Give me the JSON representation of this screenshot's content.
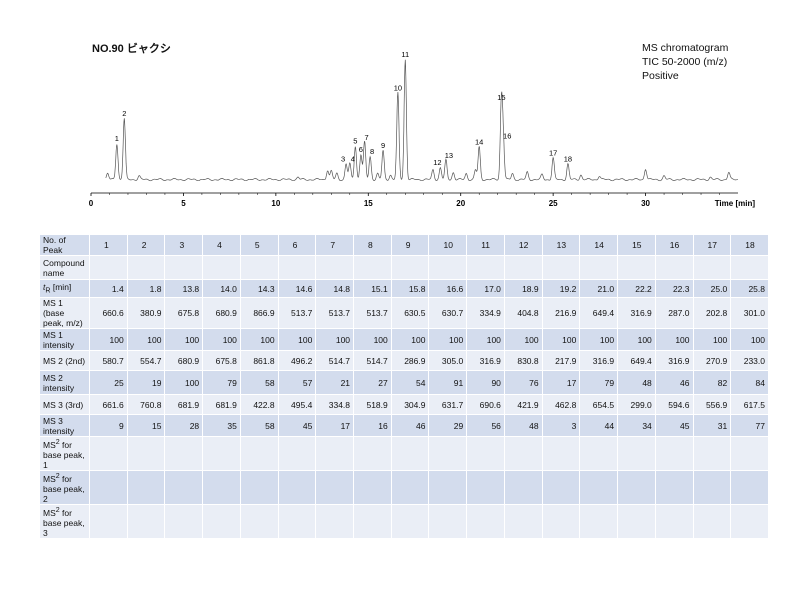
{
  "sample_title": "NO.90 ビャクシ",
  "info_lines": [
    "MS chromatogram",
    "TIC 50-2000 (m/z)",
    "Positive"
  ],
  "chart_data": {
    "type": "line",
    "title": "",
    "xlabel": "Time [min]",
    "xlim": [
      0,
      35
    ],
    "x_ticks": [
      "0",
      "5",
      "10",
      "15",
      "20",
      "25",
      "30"
    ],
    "peaks": [
      {
        "label": "1",
        "t": 1.4,
        "h": 0.3
      },
      {
        "label": "2",
        "t": 1.8,
        "h": 0.51
      },
      {
        "label": "3",
        "t": 13.8,
        "h": 0.13
      },
      {
        "label": "4",
        "t": 14.0,
        "h": 0.13
      },
      {
        "label": "5",
        "t": 14.3,
        "h": 0.28
      },
      {
        "label": "6",
        "t": 14.6,
        "h": 0.21
      },
      {
        "label": "7",
        "t": 14.8,
        "h": 0.31
      },
      {
        "label": "8",
        "t": 15.1,
        "h": 0.19
      },
      {
        "label": "9",
        "t": 15.8,
        "h": 0.24
      },
      {
        "label": "10",
        "t": 16.6,
        "h": 0.72
      },
      {
        "label": "11",
        "t": 17.0,
        "h": 1.0
      },
      {
        "label": "12",
        "t": 18.9,
        "h": 0.1
      },
      {
        "label": "13",
        "t": 19.2,
        "h": 0.16
      },
      {
        "label": "14",
        "t": 21.0,
        "h": 0.27
      },
      {
        "label": "15",
        "t": 22.2,
        "h": 0.64
      },
      {
        "label": "16",
        "t": 22.3,
        "h": 0.32
      },
      {
        "label": "17",
        "t": 25.0,
        "h": 0.18
      },
      {
        "label": "18",
        "t": 25.8,
        "h": 0.13
      }
    ]
  },
  "table": {
    "rows": [
      {
        "label": "No. of Peak",
        "values": [
          "1",
          "2",
          "3",
          "4",
          "5",
          "6",
          "7",
          "8",
          "9",
          "10",
          "11",
          "12",
          "13",
          "14",
          "15",
          "16",
          "17",
          "18"
        ]
      },
      {
        "label": "Compound name",
        "values": [
          "",
          "",
          "",
          "",
          "",
          "",
          "",
          "",
          "",
          "",
          "",
          "",
          "",
          "",
          "",
          "",
          "",
          ""
        ]
      },
      {
        "label_html": "<i>t</i><sub>R</sub> [min]",
        "values": [
          "1.4",
          "1.8",
          "13.8",
          "14.0",
          "14.3",
          "14.6",
          "14.8",
          "15.1",
          "15.8",
          "16.6",
          "17.0",
          "18.9",
          "19.2",
          "21.0",
          "22.2",
          "22.3",
          "25.0",
          "25.8"
        ]
      },
      {
        "label": "MS 1 (base peak, m/z)",
        "values": [
          "660.6",
          "380.9",
          "675.8",
          "680.9",
          "866.9",
          "513.7",
          "513.7",
          "513.7",
          "630.5",
          "630.7",
          "334.9",
          "404.8",
          "216.9",
          "649.4",
          "316.9",
          "287.0",
          "202.8",
          "301.0"
        ]
      },
      {
        "label": "MS 1 intensity",
        "values": [
          "100",
          "100",
          "100",
          "100",
          "100",
          "100",
          "100",
          "100",
          "100",
          "100",
          "100",
          "100",
          "100",
          "100",
          "100",
          "100",
          "100",
          "100"
        ]
      },
      {
        "label": "MS 2 (2nd)",
        "values": [
          "580.7",
          "554.7",
          "680.9",
          "675.8",
          "861.8",
          "496.2",
          "514.7",
          "514.7",
          "286.9",
          "305.0",
          "316.9",
          "830.8",
          "217.9",
          "316.9",
          "649.4",
          "316.9",
          "270.9",
          "233.0"
        ]
      },
      {
        "label": "MS 2 intensity",
        "values": [
          "25",
          "19",
          "100",
          "79",
          "58",
          "57",
          "21",
          "27",
          "54",
          "91",
          "90",
          "76",
          "17",
          "79",
          "48",
          "46",
          "82",
          "84"
        ]
      },
      {
        "label": "MS 3 (3rd)",
        "values": [
          "661.6",
          "760.8",
          "681.9",
          "681.9",
          "422.8",
          "495.4",
          "334.8",
          "518.9",
          "304.9",
          "631.7",
          "690.6",
          "421.9",
          "462.8",
          "654.5",
          "299.0",
          "594.6",
          "556.9",
          "617.5"
        ]
      },
      {
        "label": "MS 3 intensity",
        "values": [
          "9",
          "15",
          "28",
          "35",
          "58",
          "45",
          "17",
          "16",
          "46",
          "29",
          "56",
          "48",
          "3",
          "44",
          "34",
          "45",
          "31",
          "77"
        ]
      },
      {
        "label_html": "MS<sup>2</sup> for base peak, 1",
        "values": [
          "",
          "",
          "",
          "",
          "",
          "",
          "",
          "",
          "",
          "",
          "",
          "",
          "",
          "",
          "",
          "",
          "",
          ""
        ]
      },
      {
        "label_html": "MS<sup>2</sup> for base peak, 2",
        "values": [
          "",
          "",
          "",
          "",
          "",
          "",
          "",
          "",
          "",
          "",
          "",
          "",
          "",
          "",
          "",
          "",
          "",
          ""
        ]
      },
      {
        "label_html": "MS<sup>2</sup> for base peak, 3",
        "values": [
          "",
          "",
          "",
          "",
          "",
          "",
          "",
          "",
          "",
          "",
          "",
          "",
          "",
          "",
          "",
          "",
          "",
          ""
        ]
      }
    ]
  }
}
